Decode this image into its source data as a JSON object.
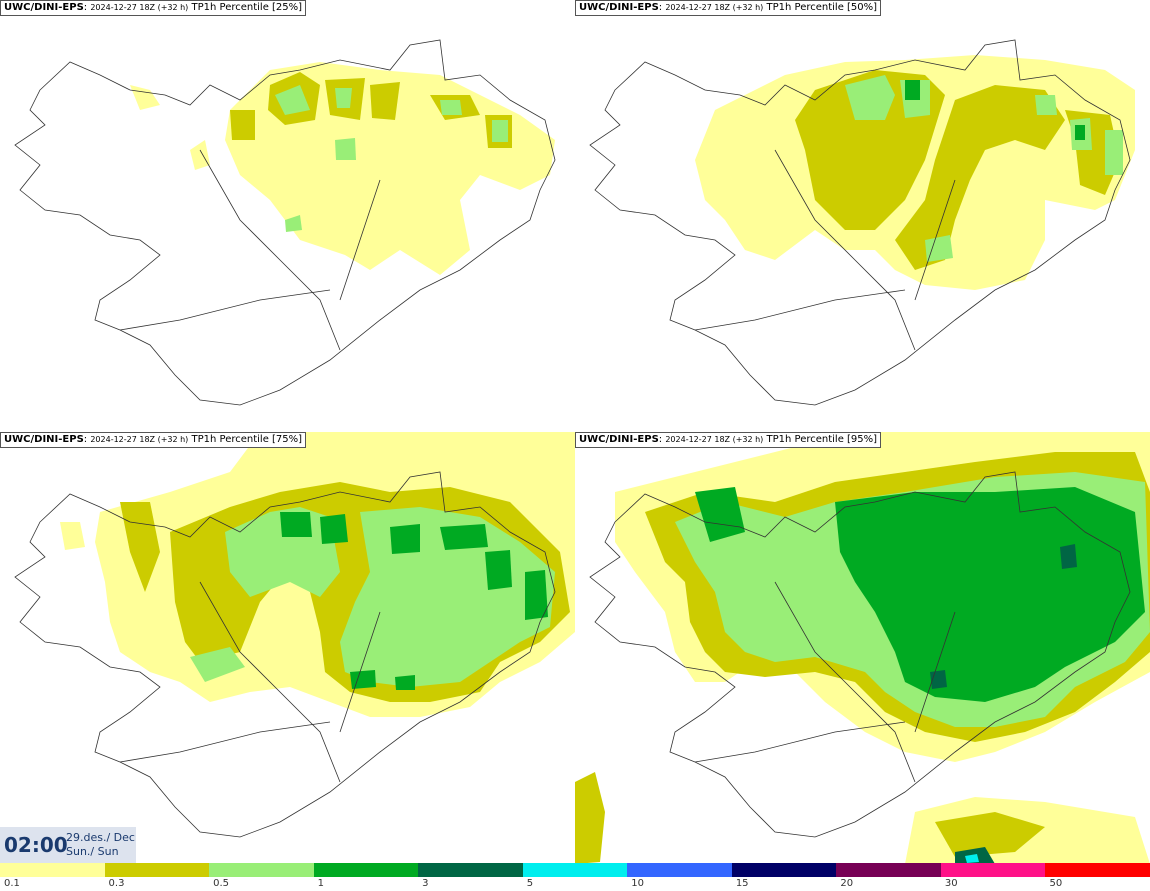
{
  "panels": [
    {
      "model": "UWC/DINI-EPS",
      "run": "2024-12-27 18Z (+32 h)",
      "product": "TP1h Percentile [25%]"
    },
    {
      "model": "UWC/DINI-EPS",
      "run": "2024-12-27 18Z (+32 h)",
      "product": "TP1h Percentile [50%]"
    },
    {
      "model": "UWC/DINI-EPS",
      "run": "2024-12-27 18Z (+32 h)",
      "product": "TP1h Percentile [75%]"
    },
    {
      "model": "UWC/DINI-EPS",
      "run": "2024-12-27 18Z (+32 h)",
      "product": "TP1h Percentile [95%]"
    }
  ],
  "valid_time": {
    "time": "02:00",
    "date": "29.des./ Dec",
    "day": "Sun./ Sun"
  },
  "legend": {
    "colors": [
      "#ffff99",
      "#cccc00",
      "#99ee77",
      "#00aa22",
      "#006644",
      "#00eeee",
      "#3366ff",
      "#000066",
      "#770055",
      "#ff1188",
      "#ff0000"
    ],
    "ticks": [
      "0.1",
      "0.3",
      "0.5",
      "1",
      "3",
      "5",
      "10",
      "15",
      "20",
      "30",
      "50"
    ]
  }
}
